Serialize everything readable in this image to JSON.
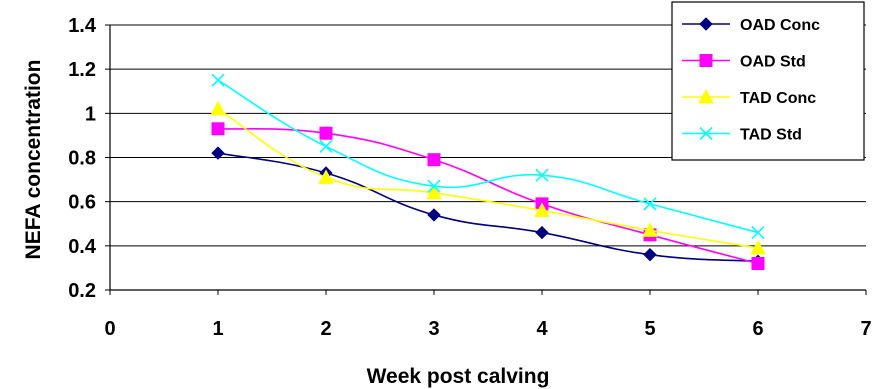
{
  "chart_data": {
    "type": "line",
    "title": "",
    "xlabel": "Week post calving",
    "ylabel": "NEFA concentration",
    "xlim": [
      0,
      7
    ],
    "ylim": [
      0.2,
      1.4
    ],
    "xticks": [
      "0",
      "1",
      "2",
      "3",
      "4",
      "5",
      "6",
      "7"
    ],
    "yticks": [
      "0.2",
      "0.4",
      "0.6",
      "0.8",
      "1",
      "1.2",
      "1.4"
    ],
    "grid": "horizontal",
    "legend_position": "top-right",
    "x": [
      1,
      2,
      3,
      4,
      5,
      6
    ],
    "series": [
      {
        "name": "OAD Conc",
        "color": "#000080",
        "marker": "diamond",
        "values": [
          0.82,
          0.73,
          0.54,
          0.46,
          0.36,
          0.33
        ]
      },
      {
        "name": "OAD Std",
        "color": "#ff00ff",
        "marker": "square",
        "values": [
          0.93,
          0.91,
          0.79,
          0.59,
          0.45,
          0.32
        ]
      },
      {
        "name": "TAD Conc",
        "color": "#ffff00",
        "marker": "triangle",
        "values": [
          1.02,
          0.71,
          0.64,
          0.56,
          0.47,
          0.39
        ]
      },
      {
        "name": "TAD Std",
        "color": "#00ffff",
        "marker": "x",
        "values": [
          1.15,
          0.85,
          0.67,
          0.72,
          0.59,
          0.46
        ]
      }
    ]
  }
}
